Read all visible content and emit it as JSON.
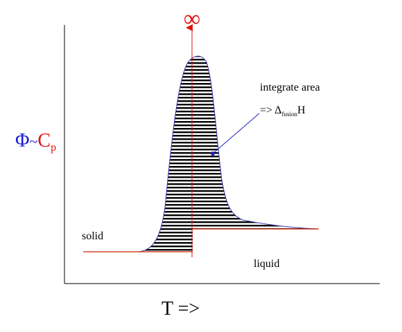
{
  "ylabel": {
    "phi": "Φ",
    "tilde": "~",
    "c": "C",
    "sub": "p"
  },
  "xlabel": "T =>",
  "infinity_label": "∞",
  "annotation": {
    "line1": "integrate area",
    "arrow_text": "=> Δ",
    "sub": "fusion",
    "tail": "H"
  },
  "region_labels": {
    "solid": "solid",
    "liquid": "liquid"
  },
  "colors": {
    "axis": "#000000",
    "curve": "#3333aa",
    "baseline": "#cc2200",
    "hatch": "#000000",
    "phi": "#1a1ad0",
    "cp": "#e01010",
    "infinity": "#e01010",
    "pointer": "#2020c0"
  }
}
